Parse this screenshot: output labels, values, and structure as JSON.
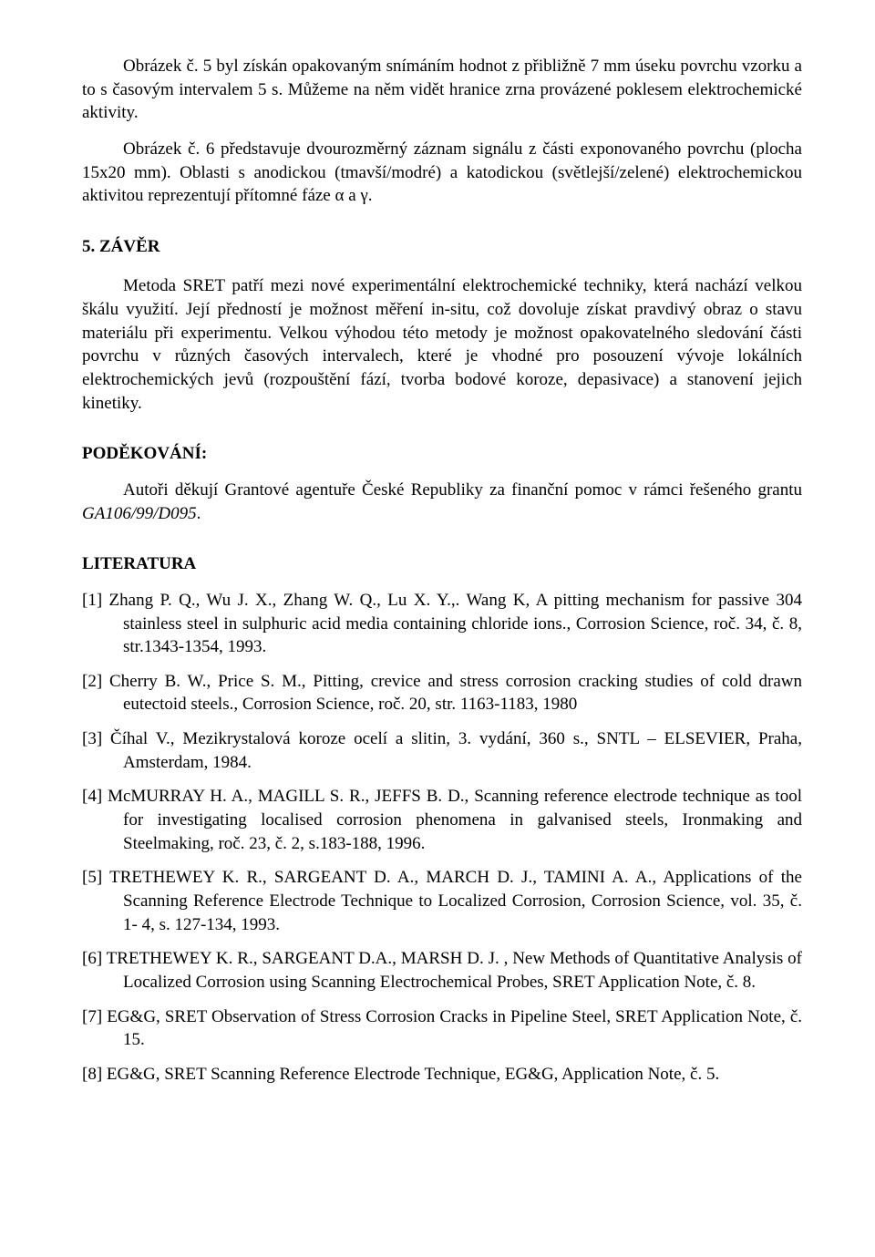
{
  "para1": "Obrázek č. 5 byl získán opakovaným snímáním hodnot z přibližně 7 mm úseku povrchu vzorku a to s časovým intervalem 5 s.  Můžeme na něm vidět hranice zrna provázené poklesem elektrochemické aktivity.",
  "para2": "Obrázek č. 6 představuje dvourozměrný záznam signálu z části exponovaného povrchu (plocha 15x20 mm). Oblasti s anodickou (tmavší/modré) a katodickou (světlejší/zelené) elektrochemickou aktivitou reprezentují přítomné fáze α a γ.",
  "zaver_heading": "5. ZÁVĚR",
  "zaver_text": "Metoda SRET patří mezi nové experimentální elektrochemické techniky, která nachází velkou škálu využití. Její předností je možnost měření  in-situ, což dovoluje získat pravdivý obraz o stavu materiálu při experimentu. Velkou výhodou této metody je možnost opakovatelného sledování části povrchu v různých časových intervalech, které je vhodné pro posouzení vývoje lokálních elektrochemických jevů (rozpouštění fází, tvorba bodové koroze, depasivace) a stanovení jejich kinetiky.",
  "podekovani_heading": "PODĚKOVÁNÍ:",
  "podekovani_prefix": "Autoři děkují Grantové agentuře České Republiky za finanční pomoc v rámci řešeného grantu ",
  "podekovani_grant": "GA106/99/D095",
  "podekovani_suffix": ".",
  "literatura_heading": "LITERATURA",
  "refs": [
    "[1] Zhang P. Q., Wu J. X., Zhang W. Q., Lu X. Y.,. Wang K, A pitting mechanism for passive 304 stainless steel in sulphuric acid media containing chloride ions., Corrosion Science, roč. 34, č. 8, str.1343-1354, 1993.",
    "[2] Cherry B. W., Price S. M., Pitting, crevice and stress corrosion cracking studies of cold drawn eutectoid steels., Corrosion Science, roč. 20, str. 1163-1183, 1980",
    "[3] Číhal V., Mezikrystalová koroze ocelí a slitin, 3. vydání, 360 s., SNTL – ELSEVIER, Praha, Amsterdam, 1984.",
    "[4] McMURRAY H. A., MAGILL S. R., JEFFS B. D., Scanning reference electrode technique as tool for investigating localised corrosion phenomena in galvanised steels, Ironmaking and Steelmaking, roč. 23, č. 2, s.183-188, 1996.",
    "[5] TRETHEWEY K. R., SARGEANT D. A., MARCH D. J., TAMINI A. A., Applications of the Scanning Reference Electrode Technique to Localized Corrosion, Corrosion Science, vol. 35, č. 1- 4, s. 127-134, 1993.",
    "[6] TRETHEWEY K. R., SARGEANT D.A., MARSH D. J. , New Methods of Quantitative Analysis of Localized Corrosion using Scanning Electrochemical Probes, SRET Application Note, č. 8.",
    "[7] EG&G, SRET Observation of Stress Corrosion Cracks in Pipeline Steel, SRET Application Note, č. 15.",
    "[8] EG&G, SRET Scanning Reference Electrode Technique, EG&G, Application Note, č. 5."
  ]
}
